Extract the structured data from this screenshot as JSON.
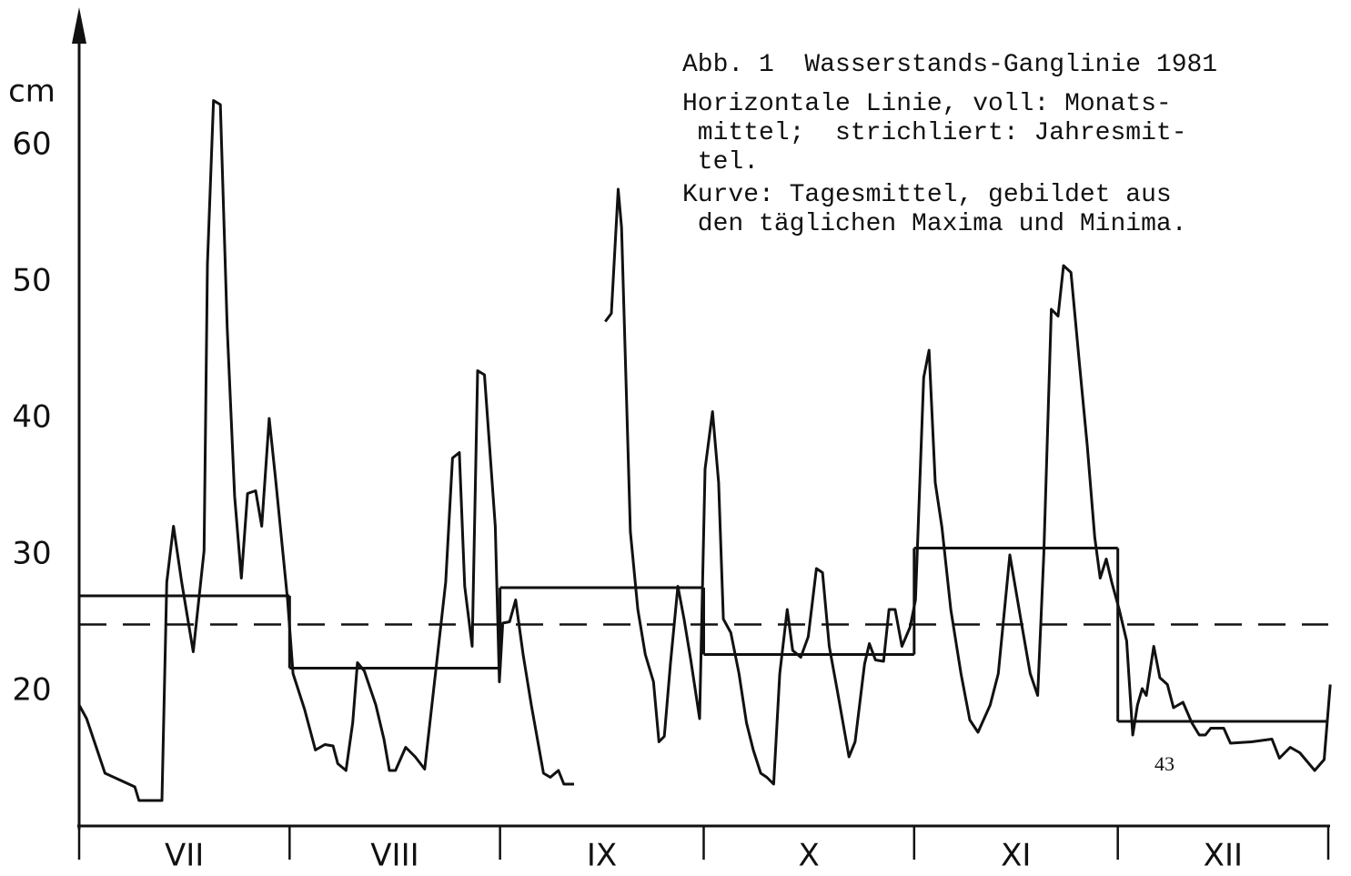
{
  "chart_data": {
    "type": "line",
    "title": "Abb. 1  Wasserstands-Ganglinie 1981",
    "notes": [
      "Horizontale Linie, voll: Monats-",
      " mittel;  strichliert: Jahresmit-",
      " tel.",
      "Kurve: Tagesmittel, gebildet aus",
      " den täglichen Maxima und Minima."
    ],
    "y_label": "cm",
    "page_number": "43",
    "categories": [
      "VII",
      "VIII",
      "IX",
      "X",
      "XI",
      "XII"
    ],
    "xlim": [
      0,
      184
    ],
    "xticks": [
      0,
      31,
      62,
      92,
      123,
      153,
      184
    ],
    "ylim": [
      10,
      70
    ],
    "yticks": [
      20,
      30,
      40,
      50,
      60
    ],
    "color": "#111111",
    "monthly_means": [
      27.0,
      21.7,
      27.6,
      22.7,
      30.5,
      17.8
    ],
    "annual_mean": 24.9,
    "x": [
      0,
      1.1,
      3.8,
      8.2,
      8.8,
      12.2,
      12.9,
      13.9,
      15.1,
      16.8,
      18.4,
      18.9,
      19.8,
      20.8,
      21.8,
      22.9,
      23.9,
      24.8,
      26.0,
      26.9,
      28.0,
      28.9,
      30.7,
      31.5,
      33.2,
      34.8,
      36.2,
      37.4,
      38.1,
      39.3,
      40.3,
      41.0,
      42.0,
      43.7,
      44.9,
      45.7,
      46.6,
      48.1,
      49.5,
      50.9,
      52.8,
      54.0,
      55.0,
      56.0,
      56.8,
      57.9,
      58.7,
      59.7,
      61.3,
      61.9,
      62.4,
      63.4,
      64.3,
      65.4,
      66.6,
      68.4,
      69.4,
      70.6,
      71.4,
      72.9,
      null,
      77.5,
      78.4,
      79.4,
      79.9,
      81.2,
      82.3,
      83.4,
      84.6,
      85.4,
      86.2,
      87.1,
      88.2,
      89.1,
      90.1,
      91.4,
      92.2,
      93.3,
      94.2,
      94.9,
      96.0,
      97.2,
      98.3,
      99.3,
      100.4,
      101.3,
      102.3,
      103.2,
      104.3,
      105.1,
      106.3,
      107.4,
      108.6,
      109.5,
      110.5,
      111.7,
      113.4,
      114.3,
      115.7,
      116.4,
      117.3,
      118.5,
      119.3,
      120.2,
      121.2,
      122.4,
      123.2,
      124.4,
      125.2,
      126.1,
      127.1,
      128.4,
      129.9,
      131.2,
      132.4,
      134.2,
      135.4,
      137.1,
      138.7,
      140.1,
      141.2,
      142.1,
      143.2,
      144.2,
      145.0,
      146.1,
      147.3,
      148.5,
      149.6,
      150.4,
      151.3,
      152.1,
      153.2,
      154.3,
      155.2,
      155.9,
      156.6,
      157.2,
      158.3,
      159.2,
      160.3,
      161.2,
      162.6,
      163.9,
      165.0,
      165.9,
      166.7,
      168.6,
      169.6,
      172.7,
      175.7,
      176.8,
      178.4,
      179.8,
      182.0,
      183.4,
      184.3
    ],
    "values": [
      19.0,
      18.0,
      14.0,
      13.0,
      12.0,
      12.0,
      28.0,
      32.1,
      28.0,
      22.9,
      30.3,
      51.3,
      63.3,
      63.0,
      46.7,
      34.3,
      28.3,
      34.5,
      34.7,
      32.1,
      40.0,
      35.7,
      26.7,
      21.3,
      18.7,
      15.7,
      16.1,
      16.0,
      14.7,
      14.2,
      17.7,
      22.1,
      21.5,
      19.0,
      16.5,
      14.2,
      14.2,
      15.9,
      15.2,
      14.3,
      22.7,
      28.0,
      37.1,
      37.5,
      27.7,
      23.3,
      43.5,
      43.2,
      32.1,
      20.7,
      25.0,
      25.1,
      26.7,
      22.7,
      19.0,
      14.0,
      13.7,
      14.2,
      13.2,
      13.2,
      null,
      47.1,
      47.7,
      56.8,
      54.0,
      31.7,
      26.0,
      22.7,
      20.7,
      16.3,
      16.7,
      22.0,
      27.7,
      25.3,
      22.3,
      18.0,
      36.3,
      40.5,
      35.3,
      25.3,
      24.3,
      21.3,
      17.7,
      15.7,
      14.0,
      13.7,
      13.2,
      21.3,
      26.0,
      23.0,
      22.5,
      24.0,
      29.0,
      28.7,
      23.3,
      20.0,
      15.2,
      16.3,
      22.0,
      23.5,
      22.3,
      22.2,
      26.0,
      26.0,
      23.3,
      24.7,
      26.7,
      43.0,
      45.0,
      35.3,
      32.0,
      26.0,
      21.3,
      17.9,
      17.0,
      19.0,
      21.3,
      30.0,
      25.3,
      21.3,
      19.7,
      30.0,
      48.0,
      47.5,
      51.2,
      50.7,
      44.3,
      38.0,
      31.3,
      28.3,
      29.7,
      28.0,
      26.0,
      23.7,
      16.8,
      19.0,
      20.2,
      19.7,
      23.3,
      21.0,
      20.5,
      18.8,
      19.2,
      17.7,
      16.8,
      16.8,
      17.3,
      17.3,
      16.2,
      16.3,
      16.5,
      15.1,
      15.9,
      15.5,
      14.2,
      15.0,
      20.5
    ]
  }
}
